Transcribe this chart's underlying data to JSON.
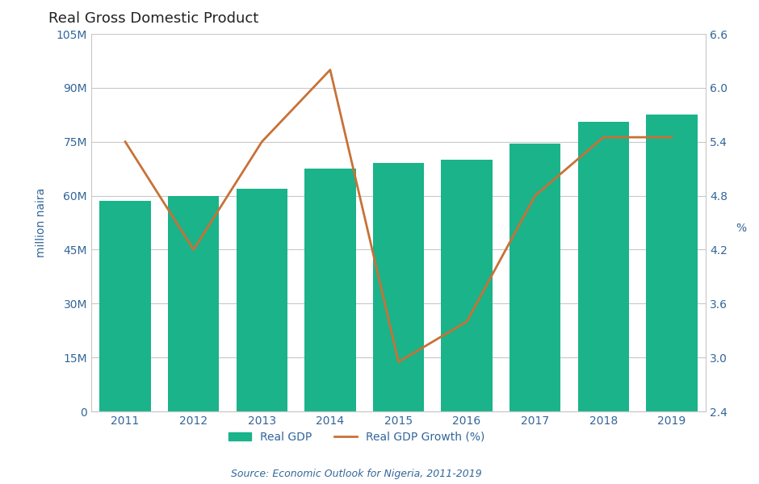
{
  "title": "Real Gross Domestic Product",
  "years": [
    2011,
    2012,
    2013,
    2014,
    2015,
    2016,
    2017,
    2018,
    2019
  ],
  "gdp_values": [
    58.5,
    60.0,
    62.0,
    67.5,
    69.0,
    70.0,
    74.5,
    80.5,
    82.5
  ],
  "gdp_growth": [
    5.4,
    4.2,
    5.4,
    6.2,
    2.95,
    3.4,
    4.8,
    5.45,
    5.45
  ],
  "bar_color": "#1ab38a",
  "line_color": "#c87137",
  "ylabel_left": "million naira",
  "ylabel_right": "%",
  "ylim_left": [
    0,
    105
  ],
  "ylim_right": [
    2.4,
    6.6
  ],
  "yticks_left": [
    0,
    15,
    30,
    45,
    60,
    75,
    90,
    105
  ],
  "ytick_labels_left": [
    "0",
    "15M",
    "30M",
    "45M",
    "60M",
    "75M",
    "90M",
    "105M"
  ],
  "yticks_right": [
    2.4,
    3.0,
    3.6,
    4.2,
    4.8,
    5.4,
    6.0,
    6.6
  ],
  "legend_labels": [
    "Real GDP",
    "Real GDP Growth (%)"
  ],
  "source_text": "Source: Economic Outlook for Nigeria, 2011-2019",
  "background_color": "#ffffff",
  "grid_color": "#c8c8c8",
  "title_color": "#222222",
  "axis_label_color": "#336699",
  "source_color": "#336699"
}
